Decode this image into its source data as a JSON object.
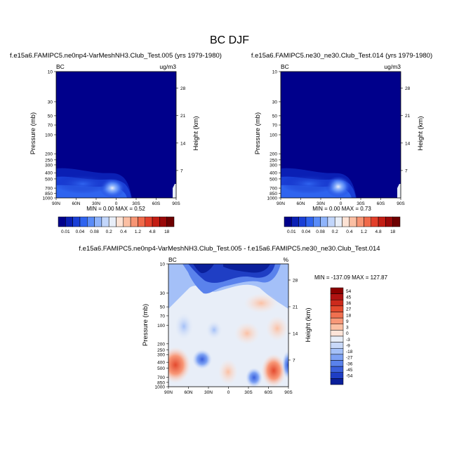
{
  "page_title": "BC DJF",
  "panels": [
    {
      "title": "f.e15a6.FAMIPC5.ne0np4-VarMeshNH3.Club_Test.005 (yrs 1979-1980)",
      "left_label": "BC",
      "right_label": "ug/m3",
      "ylabel": "Pressure (mb)",
      "y2label": "Height (km)",
      "stats": "MIN =  0.00  MAX =  0.52"
    },
    {
      "title": "f.e15a6.FAMIPC5.ne30_ne30.Club_Test.014 (yrs 1979-1980)",
      "left_label": "BC",
      "right_label": "ug/m3",
      "ylabel": "Pressure (mb)",
      "y2label": "Height (km)",
      "stats": "MIN =  0.00  MAX =  0.73"
    },
    {
      "title": "f.e15a6.FAMIPC5.ne0np4-VarMeshNH3.Club_Test.005 - f.e15a6.FAMIPC5.ne30_ne30.Club_Test.014",
      "left_label": "BC",
      "right_label": "%",
      "ylabel": "Pressure (mb)",
      "y2label": "Height (km)",
      "stats": "MIN = -137.09  MAX = 127.87"
    }
  ],
  "chart_data": [
    {
      "type": "heatmap",
      "title": "f.e15a6.FAMIPC5.ne0np4-VarMeshNH3.Club_Test.005 (yrs 1979-1980)",
      "x_ticks": [
        "90N",
        "60N",
        "30N",
        "0",
        "30S",
        "60S",
        "90S"
      ],
      "y_ticks": [
        "10",
        "30",
        "50",
        "70",
        "100",
        "200",
        "250",
        "300",
        "400",
        "500",
        "700",
        "850",
        "1000"
      ],
      "y_tick_values": [
        10,
        30,
        50,
        70,
        100,
        200,
        250,
        300,
        400,
        500,
        700,
        850,
        1000
      ],
      "y2_ticks": [
        "28",
        "21",
        "14",
        "7"
      ],
      "y2_tick_values": [
        28,
        21,
        14,
        7
      ],
      "min": 0.0,
      "max": 0.52,
      "colorbar": {
        "labels": [
          "0.01",
          "0.04",
          "0.08",
          "0.2",
          "0.4",
          "1.2",
          "4.8",
          "18"
        ],
        "colors": [
          "#00008b",
          "#0a1fb4",
          "#1a3fd6",
          "#2f64ef",
          "#5a8cf8",
          "#8fb4fb",
          "#c2d6fb",
          "#e8eef8",
          "#fde2d4",
          "#fbbfa3",
          "#f79574",
          "#f06a4a",
          "#e23f2a",
          "#c31d13",
          "#9a0808",
          "#6e0000"
        ]
      },
      "blobs": [
        {
          "lat": 0,
          "p": 750,
          "value": 0.52
        },
        {
          "lat": 45,
          "p": 600,
          "value": 0.08
        }
      ]
    },
    {
      "type": "heatmap",
      "title": "f.e15a6.FAMIPC5.ne30_ne30.Club_Test.014 (yrs 1979-1980)",
      "x_ticks": [
        "90N",
        "60N",
        "30N",
        "0",
        "30S",
        "60S",
        "90S"
      ],
      "y_ticks": [
        "10",
        "30",
        "50",
        "70",
        "100",
        "200",
        "250",
        "300",
        "400",
        "500",
        "700",
        "850",
        "1000"
      ],
      "y_tick_values": [
        10,
        30,
        50,
        70,
        100,
        200,
        250,
        300,
        400,
        500,
        700,
        850,
        1000
      ],
      "y2_ticks": [
        "28",
        "21",
        "14",
        "7"
      ],
      "y2_tick_values": [
        28,
        21,
        14,
        7
      ],
      "min": 0.0,
      "max": 0.73,
      "colorbar": {
        "labels": [
          "0.01",
          "0.04",
          "0.08",
          "0.2",
          "0.4",
          "1.2",
          "4.8",
          "18"
        ]
      },
      "blobs": [
        {
          "lat": 0,
          "p": 750,
          "value": 0.73
        },
        {
          "lat": 45,
          "p": 600,
          "value": 0.08
        }
      ]
    },
    {
      "type": "heatmap",
      "title": "f.e15a6.FAMIPC5.ne0np4-VarMeshNH3.Club_Test.005 - f.e15a6.FAMIPC5.ne30_ne30.Club_Test.014",
      "x_ticks": [
        "90N",
        "60N",
        "30N",
        "0",
        "30S",
        "60S",
        "90S"
      ],
      "y_ticks": [
        "10",
        "30",
        "50",
        "70",
        "100",
        "200",
        "250",
        "300",
        "400",
        "500",
        "700",
        "850",
        "1000"
      ],
      "y_tick_values": [
        10,
        30,
        50,
        70,
        100,
        200,
        250,
        300,
        400,
        500,
        700,
        850,
        1000
      ],
      "y2_ticks": [
        "28",
        "21",
        "14",
        "7"
      ],
      "y2_tick_values": [
        28,
        21,
        14,
        7
      ],
      "min": -137.09,
      "max": 127.87,
      "colorbar": {
        "labels": [
          "54",
          "45",
          "36",
          "27",
          "18",
          "9",
          "3",
          "0",
          "-3",
          "-9",
          "-18",
          "-27",
          "-36",
          "-45",
          "-54"
        ],
        "colors": [
          "#8b0000",
          "#b01212",
          "#cc2a1c",
          "#e44a2e",
          "#f07050",
          "#f89878",
          "#fbc0a4",
          "#fde4d8",
          "#e8eef8",
          "#c8d8f8",
          "#a4c0f8",
          "#7ea2f4",
          "#5a82ec",
          "#3b60dc",
          "#1f3ec4",
          "#0a1f9a"
        ]
      }
    }
  ]
}
